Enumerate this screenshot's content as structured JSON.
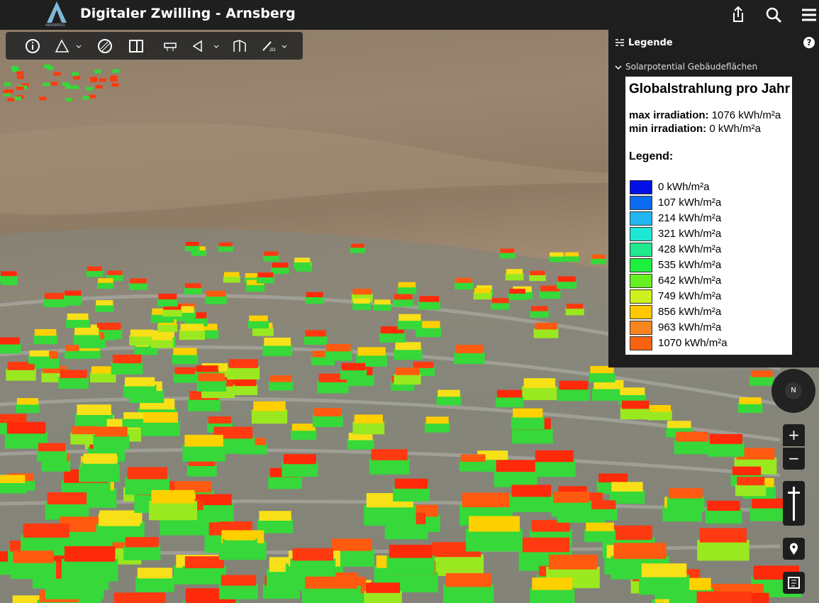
{
  "header": {
    "logo_text": "ARNSBERG",
    "title": "Digitaler Zwilling - Arnsberg"
  },
  "toolbar": {
    "mode_label": "2D"
  },
  "legend_panel": {
    "title": "Legende",
    "help": "?",
    "section": "Solarpotential Gebäudeflächen",
    "box": {
      "title": "Globalstrahlung pro Jahr",
      "max_label": "max irradiation:",
      "max_value": "1076 kWh/m²a",
      "min_label": "min irradiation:",
      "min_value": "0 kWh/m²a",
      "legend_heading": "Legend:",
      "items": [
        {
          "label": "0 kWh/m²a",
          "color": "#0010e6"
        },
        {
          "label": "107 kWh/m²a",
          "color": "#0a6cf2"
        },
        {
          "label": "214 kWh/m²a",
          "color": "#1fb8f2"
        },
        {
          "label": "321 kWh/m²a",
          "color": "#1de8d6"
        },
        {
          "label": "428 kWh/m²a",
          "color": "#22e88e"
        },
        {
          "label": "535 kWh/m²a",
          "color": "#1ef040"
        },
        {
          "label": "642 kWh/m²a",
          "color": "#66f020"
        },
        {
          "label": "749 kWh/m²a",
          "color": "#ccf21e"
        },
        {
          "label": "856 kWh/m²a",
          "color": "#ffc800"
        },
        {
          "label": "963 kWh/m²a",
          "color": "#f88420"
        },
        {
          "label": "1070 kWh/m²a",
          "color": "#f86410"
        }
      ]
    }
  },
  "map_controls": {
    "compass": "N",
    "zoom_in": "+",
    "zoom_out": "−"
  }
}
